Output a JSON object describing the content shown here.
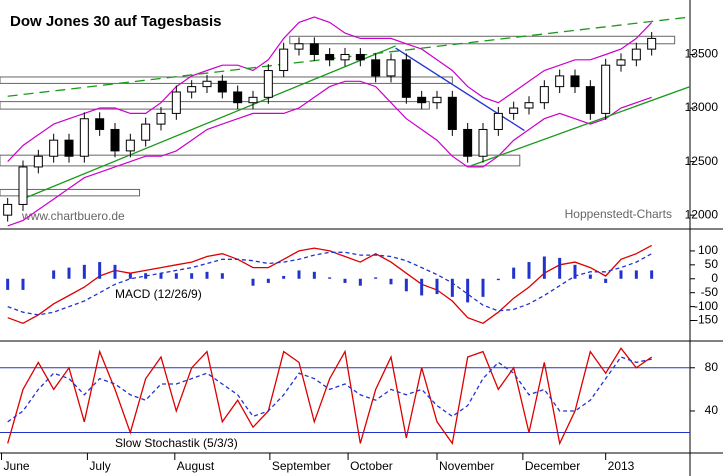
{
  "chart_data": [
    {
      "type": "candlestick",
      "title": "Dow Jones 30 auf Tagesbasis",
      "annotations": [
        "www.chartbuero.de",
        "Hoppenstedt-Charts"
      ],
      "xlim": [
        -0.5,
        44.5
      ],
      "ylim": [
        11880,
        13990
      ],
      "yticks": [
        13500,
        13000,
        12500,
        12000
      ],
      "open": [
        12000,
        12100,
        12450,
        12550,
        12700,
        12550,
        12900,
        12800,
        12600,
        12700,
        12850,
        12950,
        13150,
        13200,
        13250,
        13150,
        13050,
        13100,
        13350,
        13550,
        13600,
        13500,
        13450,
        13500,
        13450,
        13300,
        13450,
        13100,
        13050,
        13100,
        12800,
        12550,
        12800,
        12950,
        13000,
        13050,
        13200,
        13300,
        13200,
        12950,
        13400,
        13450,
        13550
      ],
      "high": [
        12160,
        12510,
        12610,
        12760,
        12760,
        12960,
        12960,
        12860,
        12760,
        12910,
        13010,
        13210,
        13260,
        13310,
        13310,
        13210,
        13160,
        13410,
        13610,
        13660,
        13660,
        13560,
        13560,
        13560,
        13510,
        13510,
        13510,
        13160,
        13160,
        13160,
        12860,
        12860,
        13010,
        13060,
        13110,
        13260,
        13360,
        13360,
        13260,
        13460,
        13510,
        13610,
        13710
      ],
      "low": [
        11940,
        12040,
        12390,
        12490,
        12490,
        12490,
        12740,
        12540,
        12540,
        12640,
        12790,
        12890,
        13090,
        13140,
        13090,
        12990,
        12990,
        13040,
        13290,
        13490,
        13440,
        13390,
        13390,
        13390,
        13240,
        13240,
        13040,
        12990,
        12990,
        12740,
        12490,
        12490,
        12740,
        12890,
        12940,
        12990,
        13140,
        13140,
        12890,
        12890,
        13340,
        13390,
        13490
      ],
      "close": [
        12100,
        12450,
        12550,
        12700,
        12550,
        12900,
        12800,
        12600,
        12700,
        12850,
        12950,
        13150,
        13200,
        13250,
        13150,
        13050,
        13100,
        13350,
        13550,
        13600,
        13500,
        13450,
        13500,
        13450,
        13300,
        13450,
        13100,
        13050,
        13100,
        12800,
        12550,
        12800,
        12950,
        13000,
        13050,
        13200,
        13300,
        13200,
        12950,
        13400,
        13450,
        13550,
        13650
      ],
      "overlays": [
        {
          "color": "#cc00cc",
          "values": [
            12500,
            12650,
            12750,
            12850,
            12900,
            12950,
            13000,
            13000,
            12950,
            12950,
            13050,
            13200,
            13300,
            13350,
            13400,
            13400,
            13350,
            13450,
            13650,
            13800,
            13850,
            13800,
            13700,
            13650,
            13650,
            13650,
            13600,
            13550,
            13450,
            13350,
            13200,
            13100,
            13050,
            13150,
            13250,
            13350,
            13400,
            13450,
            13450,
            13500,
            13550,
            13650,
            13800
          ]
        },
        {
          "color": "#cc00cc",
          "values": [
            11900,
            11950,
            12050,
            12150,
            12250,
            12350,
            12400,
            12450,
            12500,
            12550,
            12550,
            12600,
            12700,
            12800,
            12850,
            12900,
            12950,
            12950,
            12950,
            13000,
            13100,
            13200,
            13250,
            13250,
            13200,
            13050,
            12900,
            12800,
            12700,
            12550,
            12450,
            12450,
            12550,
            12700,
            12800,
            12900,
            12950,
            12900,
            12850,
            12900,
            13000,
            13050,
            13100
          ]
        }
      ],
      "trendlines": [
        {
          "color": "#1a9a1a",
          "dashed": true,
          "x": [
            0,
            44.5
          ],
          "y": [
            13110,
            13850
          ]
        },
        {
          "color": "#1a9a1a",
          "dashed": false,
          "x": [
            0.8,
            25.3
          ],
          "y": [
            12140,
            13580
          ]
        },
        {
          "color": "#1a9a1a",
          "dashed": false,
          "x": [
            30.2,
            44.5
          ],
          "y": [
            12460,
            13200
          ]
        },
        {
          "color": "#2233cc",
          "dashed": false,
          "x": [
            25.3,
            33.7
          ],
          "y": [
            13560,
            12790
          ]
        }
      ],
      "zones": [
        {
          "x": [
            18.4,
            43.5
          ],
          "y": [
            13600,
            13670
          ]
        },
        {
          "x": [
            -0.5,
            29
          ],
          "y": [
            13230,
            13290
          ]
        },
        {
          "x": [
            -0.5,
            27.5
          ],
          "y": [
            12990,
            13060
          ]
        },
        {
          "x": [
            -0.5,
            33.4
          ],
          "y": [
            12460,
            12560
          ]
        },
        {
          "x": [
            -0.5,
            8.6
          ],
          "y": [
            12180,
            12240
          ]
        }
      ]
    },
    {
      "type": "line",
      "title": "MACD (12/26/9)",
      "ylim": [
        -220,
        168
      ],
      "yticks": [
        100,
        50,
        0,
        -50,
        -100,
        -150
      ],
      "series": [
        {
          "color": "#dd0000",
          "dashed": false,
          "values": [
            -140,
            -160,
            -130,
            -90,
            -60,
            -30,
            10,
            30,
            20,
            30,
            40,
            50,
            60,
            80,
            90,
            70,
            40,
            40,
            70,
            100,
            110,
            100,
            80,
            60,
            90,
            60,
            20,
            -20,
            -40,
            -80,
            -140,
            -160,
            -120,
            -70,
            -30,
            20,
            50,
            60,
            40,
            10,
            70,
            90,
            120
          ]
        },
        {
          "color": "#2233cc",
          "dashed": true,
          "values": [
            -100,
            -120,
            -130,
            -120,
            -100,
            -80,
            -50,
            -20,
            0,
            10,
            20,
            30,
            40,
            55,
            70,
            70,
            65,
            55,
            60,
            70,
            85,
            95,
            95,
            85,
            85,
            80,
            65,
            40,
            15,
            -15,
            -55,
            -95,
            -115,
            -110,
            -90,
            -60,
            -25,
            10,
            25,
            25,
            40,
            60,
            90
          ]
        },
        {
          "color": "#2233cc",
          "kind": "bar",
          "values": [
            -40,
            -40,
            0,
            30,
            40,
            50,
            60,
            50,
            20,
            20,
            20,
            20,
            20,
            25,
            20,
            0,
            -25,
            -15,
            10,
            30,
            25,
            5,
            -15,
            -25,
            5,
            -20,
            -45,
            -60,
            -55,
            -65,
            -85,
            -65,
            -5,
            40,
            60,
            80,
            75,
            50,
            15,
            -15,
            30,
            30,
            30
          ]
        }
      ]
    },
    {
      "type": "line",
      "title": "Slow Stochastik (5/3/3)",
      "ylim": [
        2,
        102
      ],
      "yticks": [
        80,
        40
      ],
      "hlines": [
        80,
        20
      ],
      "xticks": [
        {
          "value": -0.4,
          "label": "June"
        },
        {
          "value": 5.2,
          "label": "July"
        },
        {
          "value": 10.9,
          "label": "August"
        },
        {
          "value": 17.1,
          "label": "September"
        },
        {
          "value": 22.2,
          "label": "October"
        },
        {
          "value": 28,
          "label": "November"
        },
        {
          "value": 33.6,
          "label": "December"
        },
        {
          "value": 39,
          "label": "2013"
        }
      ],
      "series": [
        {
          "color": "#dd0000",
          "dashed": false,
          "values": [
            10,
            60,
            85,
            60,
            80,
            30,
            95,
            60,
            20,
            70,
            90,
            40,
            80,
            95,
            30,
            50,
            25,
            40,
            95,
            85,
            30,
            70,
            95,
            10,
            60,
            90,
            15,
            80,
            30,
            10,
            90,
            95,
            60,
            80,
            20,
            85,
            10,
            40,
            95,
            75,
            98,
            80,
            90
          ]
        },
        {
          "color": "#2233cc",
          "dashed": true,
          "values": [
            30,
            40,
            60,
            75,
            70,
            55,
            70,
            65,
            55,
            50,
            65,
            65,
            70,
            75,
            65,
            55,
            35,
            40,
            55,
            75,
            70,
            60,
            65,
            55,
            50,
            60,
            55,
            60,
            45,
            35,
            45,
            70,
            85,
            75,
            55,
            60,
            40,
            40,
            50,
            70,
            90,
            85,
            88
          ]
        }
      ]
    }
  ]
}
